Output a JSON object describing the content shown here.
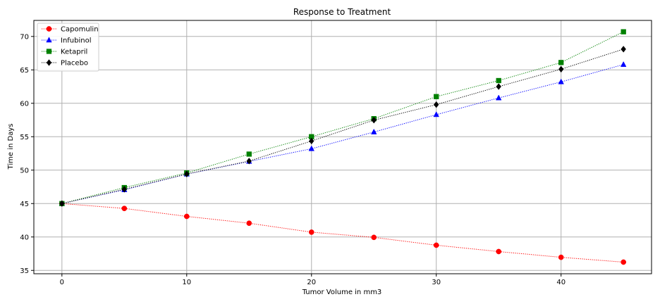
{
  "chart_data": {
    "type": "line",
    "title": "Response to Treatment",
    "xlabel": "Tumor Volume in mm3",
    "ylabel": "Time in Days",
    "xlim": [
      -2.25,
      47.25
    ],
    "ylim": [
      34.5,
      72.4
    ],
    "x_ticks": [
      0,
      10,
      20,
      30,
      40
    ],
    "y_ticks": [
      35,
      40,
      45,
      50,
      55,
      60,
      65,
      70
    ],
    "grid": true,
    "legend_position": "top-left",
    "x": [
      0,
      5,
      10,
      15,
      20,
      25,
      30,
      35,
      40,
      45
    ],
    "series": [
      {
        "name": "Capomulin",
        "marker": "circle",
        "color": "#ff0000",
        "values": [
          45.0,
          44.27,
          43.08,
          42.06,
          40.72,
          39.94,
          38.77,
          37.82,
          36.96,
          36.24
        ]
      },
      {
        "name": "Infubinol",
        "marker": "triangle",
        "color": "#0000ff",
        "values": [
          45.0,
          47.06,
          49.4,
          51.3,
          53.2,
          55.7,
          58.3,
          60.8,
          63.2,
          65.8
        ]
      },
      {
        "name": "Ketapril",
        "marker": "square",
        "color": "#008000",
        "values": [
          45.0,
          47.39,
          49.58,
          52.4,
          55.0,
          57.7,
          61.0,
          63.4,
          66.1,
          70.7
        ]
      },
      {
        "name": "Placebo",
        "marker": "diamond",
        "color": "#000000",
        "values": [
          45.0,
          47.13,
          49.42,
          51.36,
          54.36,
          57.48,
          59.8,
          62.5,
          65.1,
          68.1
        ]
      }
    ]
  }
}
